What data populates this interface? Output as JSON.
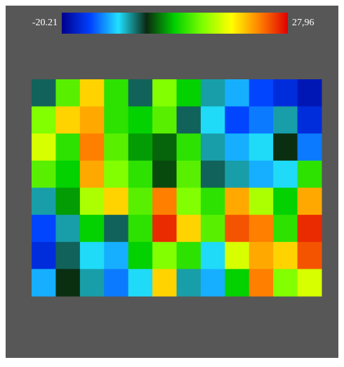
{
  "chart_data": {
    "type": "heatmap",
    "zlim": [
      -20.21,
      27.96
    ],
    "colorbar_ticks": [
      -20.21,
      {
        "value": 27.96,
        "label": "27,96"
      }
    ],
    "colormap": [
      "#00008c",
      "#0040ff",
      "#20e0ff",
      "#0a2a10",
      "#00d000",
      "#80ff00",
      "#ffff00",
      "#ff8000",
      "#e00000"
    ],
    "values": [
      [
        -4,
        8,
        18,
        6,
        -4,
        10,
        4,
        -6,
        -10,
        -14,
        -16,
        -18
      ],
      [
        10,
        18,
        20,
        6,
        4,
        8,
        -4,
        -8,
        -14,
        -12,
        -6,
        -16
      ],
      [
        14,
        6,
        22,
        8,
        2,
        0,
        6,
        -6,
        -10,
        -8,
        -2,
        -12
      ],
      [
        8,
        4,
        20,
        10,
        6,
        -1,
        8,
        -4,
        -6,
        -10,
        -8,
        6
      ],
      [
        -6,
        2,
        12,
        18,
        8,
        22,
        10,
        6,
        20,
        12,
        4,
        20
      ],
      [
        -14,
        -6,
        4,
        -4,
        6,
        26,
        18,
        8,
        24,
        22,
        6,
        26
      ],
      [
        -16,
        -4,
        -8,
        -10,
        4,
        10,
        6,
        -8,
        14,
        20,
        18,
        24
      ],
      [
        -10,
        -2,
        -6,
        -12,
        -8,
        18,
        -6,
        -10,
        4,
        22,
        10,
        14
      ]
    ]
  }
}
